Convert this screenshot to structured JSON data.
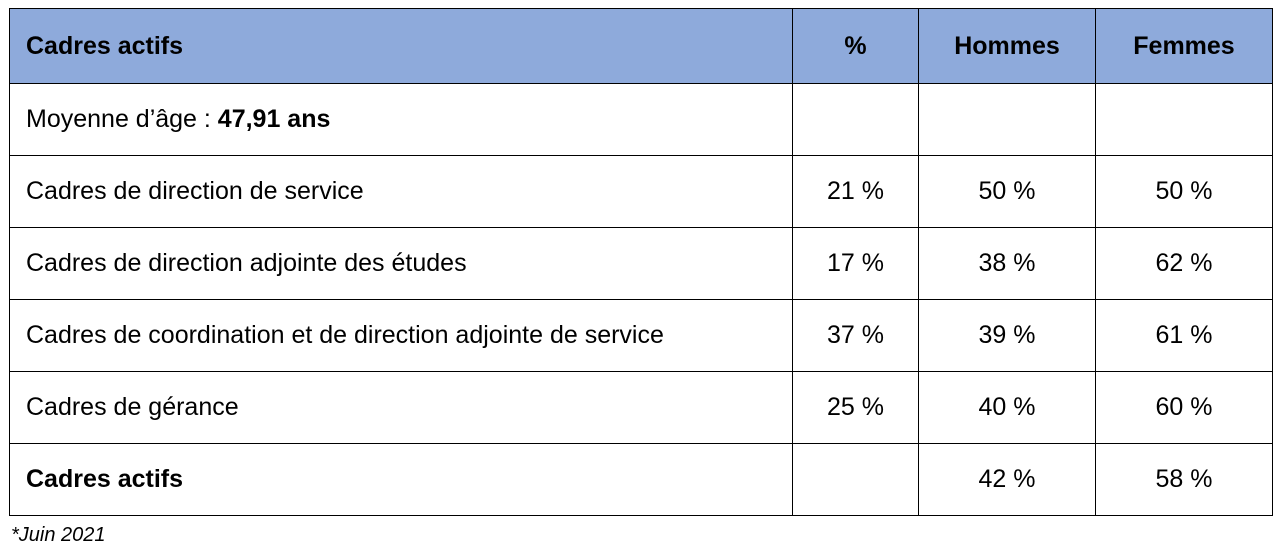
{
  "header": {
    "label": "Cadres actifs",
    "percent": "%",
    "men": "Hommes",
    "women": "Femmes"
  },
  "age_row": {
    "label": "Moyenne d’âge : ",
    "value": "47,91 ans"
  },
  "rows": [
    {
      "label": "Cadres de direction de service",
      "percent": "21 %",
      "men": "50 %",
      "women": "50 %"
    },
    {
      "label": "Cadres de direction adjointe des études",
      "percent": "17 %",
      "men": "38 %",
      "women": "62 %"
    },
    {
      "label": "Cadres de coordination et de direction adjointe de service",
      "percent": "37 %",
      "men": "39 %",
      "women": "61 %"
    },
    {
      "label": "Cadres de gérance",
      "percent": "25 %",
      "men": "40 %",
      "women": "60 %"
    }
  ],
  "total_row": {
    "label": "Cadres actifs",
    "percent": "",
    "men": "42 %",
    "women": "58 %"
  },
  "footnote": "*Juin 2021",
  "colors": {
    "header_background": "#8eaadb",
    "border": "#000000"
  }
}
